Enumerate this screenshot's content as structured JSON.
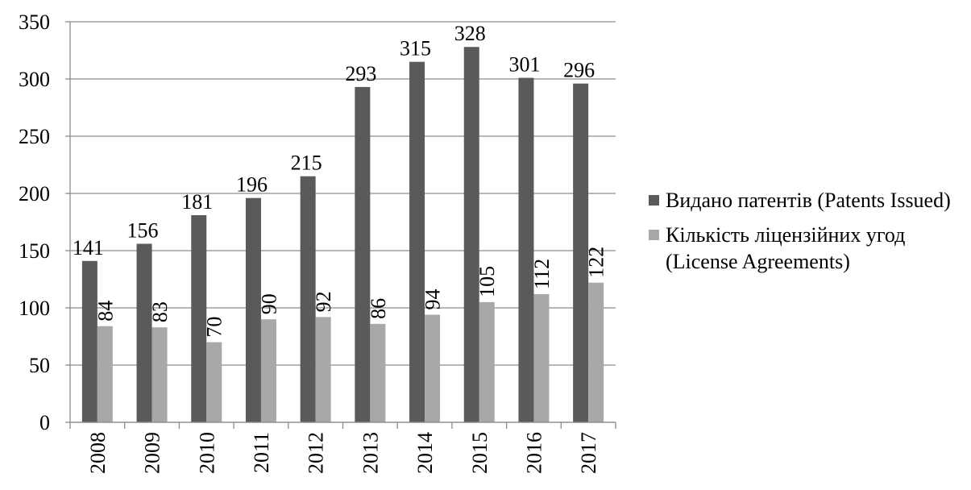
{
  "chart_data": {
    "type": "bar",
    "categories": [
      "2008",
      "2009",
      "2010",
      "2011",
      "2012",
      "2013",
      "2014",
      "2015",
      "2016",
      "2017"
    ],
    "series": [
      {
        "name": "Видано патентів (Patents Issued)",
        "color": "#5a5a5a",
        "values": [
          141,
          156,
          181,
          196,
          215,
          293,
          315,
          328,
          301,
          296
        ]
      },
      {
        "name": "Кількість ліцензійних угод (License Agreements)",
        "color": "#a8a8a8",
        "values": [
          84,
          83,
          70,
          90,
          92,
          86,
          94,
          105,
          112,
          122
        ]
      }
    ],
    "ylim": [
      0,
      350
    ],
    "yticks": [
      0,
      50,
      100,
      150,
      200,
      250,
      300,
      350
    ],
    "grid": true,
    "legend": "right"
  }
}
